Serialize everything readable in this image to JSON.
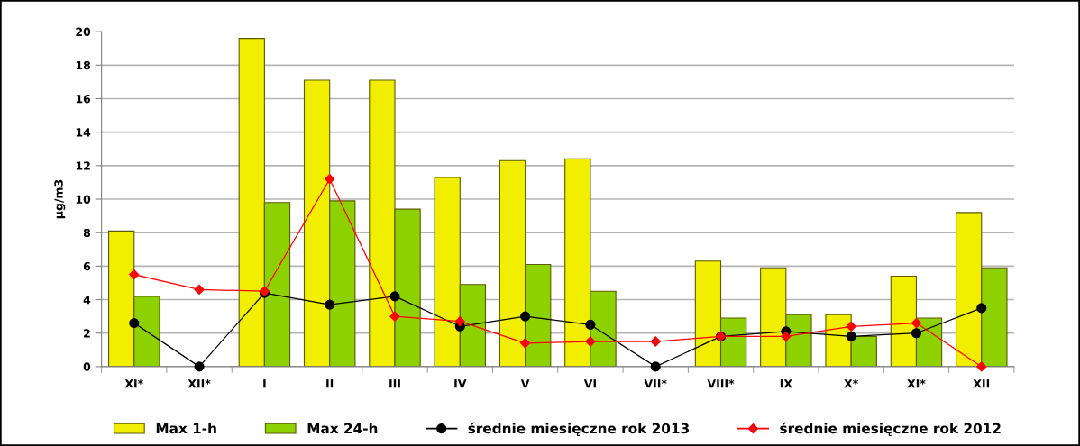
{
  "chart_data": {
    "type": "bar",
    "ylabel": "µg/m3",
    "categories": [
      "XI*",
      "XII*",
      "I",
      "II",
      "III",
      "IV",
      "V",
      "VI",
      "VII*",
      "VIII*",
      "IX",
      "X*",
      "XI*",
      "XII"
    ],
    "series": [
      {
        "name": "Max 1-h",
        "color": "#f2ee00",
        "values": [
          8.1,
          null,
          19.6,
          17.1,
          17.1,
          11.3,
          12.3,
          12.4,
          null,
          6.3,
          5.9,
          3.1,
          5.4,
          9.2
        ]
      },
      {
        "name": "Max 24-h",
        "color": "#8ed100",
        "values": [
          4.2,
          null,
          9.8,
          9.9,
          9.4,
          4.9,
          6.1,
          4.5,
          null,
          2.9,
          3.1,
          1.8,
          2.9,
          5.9
        ]
      },
      {
        "name": "średnie miesięczne rok 2013",
        "type": "line",
        "color": "#000000",
        "marker": "circle",
        "values": [
          2.6,
          0,
          4.4,
          3.7,
          4.2,
          2.4,
          3.0,
          2.5,
          0,
          1.8,
          2.1,
          1.8,
          2.0,
          3.5
        ]
      },
      {
        "name": "średnie miesięczne rok 2012",
        "type": "line",
        "color": "#ff0000",
        "marker": "diamond",
        "values": [
          5.5,
          4.6,
          4.5,
          11.2,
          3.0,
          2.7,
          1.4,
          1.5,
          1.5,
          1.8,
          1.8,
          2.4,
          2.6,
          0
        ]
      }
    ],
    "ylim": [
      0,
      20
    ],
    "yticks": [
      0,
      2,
      4,
      6,
      8,
      10,
      12,
      14,
      16,
      18,
      20
    ],
    "grid": "y",
    "legend": "bottom"
  }
}
